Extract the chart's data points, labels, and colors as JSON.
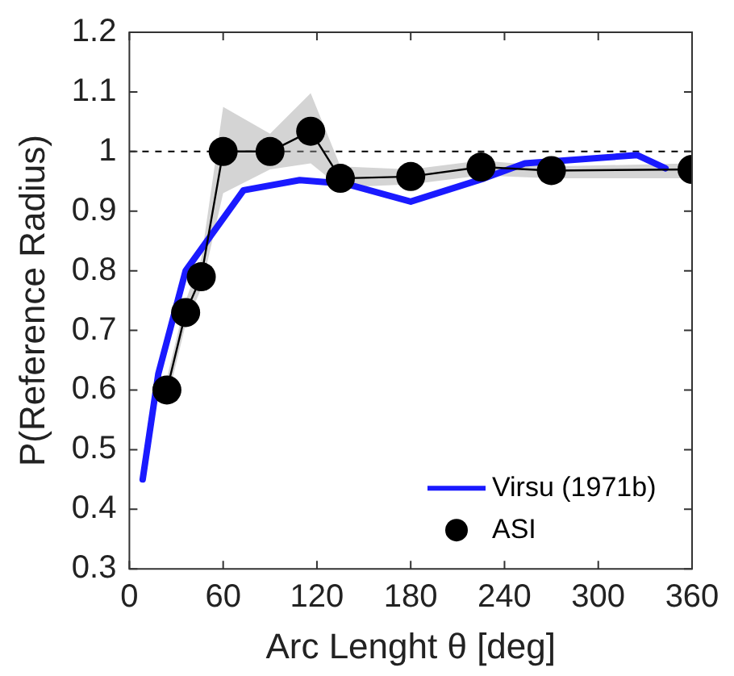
{
  "chart_data": {
    "type": "line",
    "xlabel": "Arc Lenght θ [deg]",
    "ylabel": "P(Reference Radius)",
    "xlim": [
      0,
      360
    ],
    "xticks": [
      0,
      60,
      120,
      180,
      240,
      300,
      360
    ],
    "ylim": [
      0.3,
      1.2
    ],
    "yticks": [
      0.3,
      0.4,
      0.5,
      0.6,
      0.7,
      0.8,
      0.9,
      1,
      1.1,
      1.2
    ],
    "grid": false,
    "legend": "bottom right",
    "ref_lines": [
      {
        "axis": "y",
        "value": 1,
        "line_style": "dashed",
        "color": "#000000"
      }
    ],
    "series": [
      {
        "name": "Virsu (1971b)",
        "color": "#1a1aff",
        "marker": "none",
        "x": [
          8.5,
          18.5,
          36,
          73,
          109,
          138,
          180,
          227,
          253,
          325,
          343
        ],
        "values": [
          0.45,
          0.627,
          0.8,
          0.935,
          0.952,
          0.946,
          0.916,
          0.955,
          0.98,
          0.994,
          0.972
        ]
      },
      {
        "name": "ASI",
        "color": "#000000",
        "marker": "circle",
        "x": [
          24,
          36,
          46,
          60,
          90,
          116,
          135,
          180,
          225,
          270,
          360
        ],
        "values": [
          0.6,
          0.73,
          0.79,
          1.0,
          1.0,
          1.034,
          0.955,
          0.958,
          0.974,
          0.968,
          0.97
        ],
        "lower": [
          0.58,
          0.71,
          0.77,
          0.93,
          0.97,
          0.98,
          0.94,
          0.945,
          0.96,
          0.955,
          0.955
        ],
        "upper": [
          0.62,
          0.75,
          0.82,
          1.075,
          1.03,
          1.098,
          0.975,
          0.97,
          0.985,
          0.975,
          0.98
        ]
      }
    ]
  }
}
